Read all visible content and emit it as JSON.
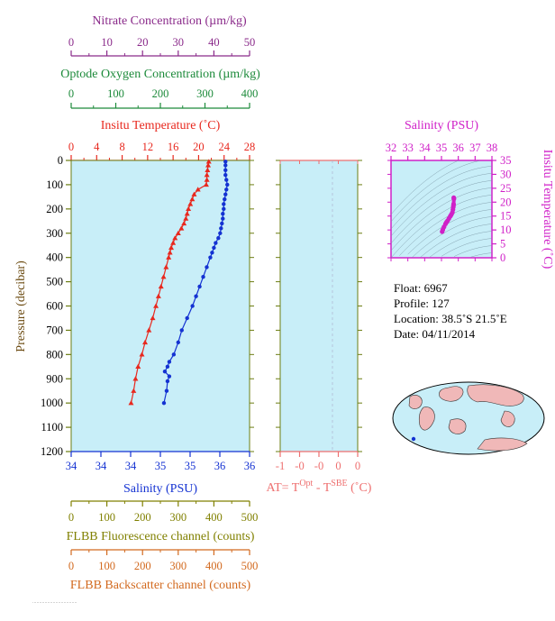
{
  "chart_data": {
    "type": "line",
    "profile_panel": {
      "pressure_axis": {
        "label": "Pressure (decibar)",
        "range": [
          0,
          1200
        ],
        "ticks": [
          0,
          100,
          200,
          300,
          400,
          500,
          600,
          700,
          800,
          900,
          1000,
          1100,
          1200
        ]
      },
      "temperature_axis": {
        "label": "Insitu Temperature (˚C)",
        "range": [
          0,
          28
        ],
        "ticks": [
          0,
          4,
          8,
          12,
          16,
          20,
          24,
          28
        ]
      },
      "salinity_axis": {
        "label": "Salinity (PSU)",
        "range": [
          34,
          36
        ],
        "tick_labels": [
          "34",
          "34",
          "34",
          "35",
          "35",
          "36",
          "36"
        ]
      },
      "nitrate_axis": {
        "label": "Nitrate Concentration (µm/kg)",
        "range": [
          0,
          50
        ],
        "ticks": [
          0,
          10,
          20,
          30,
          40,
          50
        ]
      },
      "oxygen_axis": {
        "label": "Optode Oxygen Concentration (µm/kg)",
        "range": [
          0,
          400
        ],
        "ticks": [
          0,
          100,
          200,
          300,
          400
        ]
      },
      "fluorescence_axis": {
        "label": "FLBB Fluorescence channel (counts)",
        "range": [
          0,
          500
        ],
        "ticks": [
          0,
          100,
          200,
          300,
          400,
          500
        ]
      },
      "backscatter_axis": {
        "label": "FLBB Backscatter channel (counts)",
        "range": [
          0,
          500
        ],
        "ticks": [
          0,
          100,
          200,
          300,
          400,
          500
        ]
      },
      "series": [
        {
          "color": "#e8281e",
          "pressure": [
            5,
            20,
            40,
            60,
            80,
            100,
            120,
            140,
            160,
            180,
            200,
            220,
            240,
            260,
            280,
            300,
            320,
            340,
            360,
            380,
            400,
            440,
            480,
            520,
            560,
            600,
            650,
            700,
            750,
            800,
            850,
            900,
            950,
            1000
          ],
          "temperature": [
            21.6,
            21.5,
            21.4,
            21.3,
            21.3,
            21.2,
            19.9,
            19.3,
            19.0,
            18.7,
            18.4,
            18.2,
            18.0,
            17.7,
            17.3,
            16.8,
            16.3,
            16.0,
            15.7,
            15.5,
            15.3,
            14.9,
            14.5,
            14.1,
            13.7,
            13.3,
            12.8,
            12.2,
            11.6,
            11.1,
            10.5,
            10.1,
            9.8,
            9.4
          ]
        },
        {
          "color": "#1432d2",
          "pressure": [
            5,
            20,
            40,
            60,
            80,
            100,
            120,
            140,
            160,
            180,
            200,
            220,
            240,
            260,
            280,
            300,
            320,
            340,
            360,
            380,
            400,
            440,
            480,
            520,
            560,
            600,
            650,
            700,
            750,
            800,
            830,
            850,
            870,
            890,
            910,
            950,
            1000
          ],
          "salinity": [
            35.73,
            35.73,
            35.73,
            35.73,
            35.74,
            35.75,
            35.74,
            35.73,
            35.72,
            35.71,
            35.71,
            35.7,
            35.7,
            35.69,
            35.68,
            35.67,
            35.65,
            35.62,
            35.6,
            35.58,
            35.56,
            35.52,
            35.48,
            35.44,
            35.4,
            35.36,
            35.3,
            35.24,
            35.2,
            35.15,
            35.1,
            35.08,
            35.05,
            35.1,
            35.08,
            35.07,
            35.04
          ]
        }
      ]
    },
    "delta_t_panel": {
      "label": "AT= T",
      "label_sup1": "Opt",
      "label_mid": " - T",
      "label_sup2": "SBE",
      "label_unit": " (˚C)",
      "range": [
        -1,
        0
      ],
      "tick_labels": [
        "-1",
        "-0",
        "-0",
        "0",
        "0"
      ]
    },
    "ts_panel": {
      "salinity_axis": {
        "label": "Salinity (PSU)",
        "range": [
          32,
          38
        ],
        "ticks": [
          32,
          33,
          34,
          35,
          36,
          37,
          38
        ]
      },
      "temperature_axis": {
        "label": "Insitu Temperature (˚C)",
        "range": [
          0,
          35
        ],
        "ticks": [
          0,
          5,
          10,
          15,
          20,
          25,
          30,
          35
        ]
      },
      "points": {
        "salinity": [
          35.04,
          35.08,
          35.15,
          35.24,
          35.3,
          35.36,
          35.44,
          35.52,
          35.56,
          35.6,
          35.65,
          35.68,
          35.7,
          35.71,
          35.72,
          35.74,
          35.73
        ],
        "temperature": [
          9.4,
          10.1,
          11.1,
          12.2,
          12.8,
          13.3,
          14.1,
          14.9,
          15.3,
          15.7,
          16.3,
          17.3,
          18.2,
          18.7,
          19.3,
          21.2,
          21.6
        ]
      }
    }
  },
  "info": {
    "float": "Float:  6967",
    "profile": "Profile:  127",
    "location": "Location:  38.5˚S  21.5˚E",
    "date": "Date:  04/11/2014"
  },
  "colors": {
    "nitrate": "#8a2a8a",
    "oxygen": "#1c8a3a",
    "temperature": "#e8281e",
    "salinity": "#1432d2",
    "delta": "#ee6f6f",
    "ts": "#d020c8",
    "flbb": "#808000",
    "backscatter": "#d2691e",
    "plot_bg": "#c8eef8",
    "axis_olive": "#6b7d12"
  }
}
